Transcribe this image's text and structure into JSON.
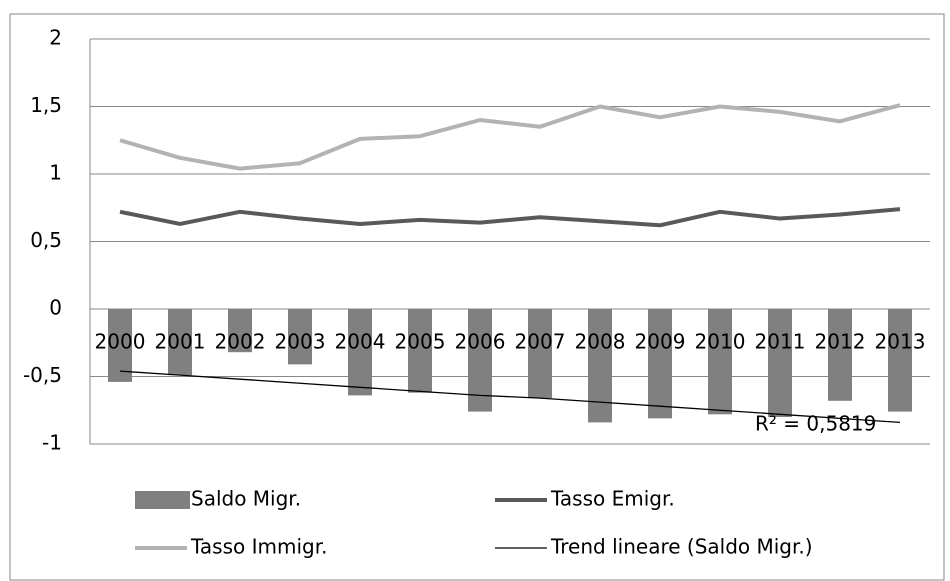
{
  "chart_data": {
    "type": "bar-line",
    "categories": [
      "2000",
      "2001",
      "2002",
      "2003",
      "2004",
      "2005",
      "2006",
      "2007",
      "2008",
      "2009",
      "2010",
      "2011",
      "2012",
      "2013"
    ],
    "series": [
      {
        "name": "Saldo Migr.",
        "kind": "bar",
        "color": "#808080",
        "values": [
          -0.54,
          -0.49,
          -0.32,
          -0.41,
          -0.64,
          -0.62,
          -0.76,
          -0.66,
          -0.84,
          -0.81,
          -0.78,
          -0.8,
          -0.68,
          -0.76
        ]
      },
      {
        "name": "Tasso Emigr.",
        "kind": "line",
        "color": "#595959",
        "values": [
          0.72,
          0.63,
          0.72,
          0.67,
          0.63,
          0.66,
          0.64,
          0.68,
          0.65,
          0.62,
          0.72,
          0.67,
          0.7,
          0.74
        ]
      },
      {
        "name": "Tasso Immigr.",
        "kind": "line",
        "color": "#b3b3b3",
        "values": [
          1.25,
          1.12,
          1.04,
          1.08,
          1.26,
          1.28,
          1.4,
          1.35,
          1.5,
          1.42,
          1.5,
          1.46,
          1.39,
          1.51
        ]
      },
      {
        "name": "Trend lineare (Saldo Migr.)",
        "kind": "trend",
        "color": "#000000",
        "values": [
          -0.46,
          -0.49,
          -0.52,
          -0.55,
          -0.58,
          -0.61,
          -0.64,
          -0.66,
          -0.69,
          -0.72,
          -0.75,
          -0.78,
          -0.81,
          -0.84
        ]
      }
    ],
    "annotation": "R² = 0,5819",
    "ylim": [
      -1,
      2
    ],
    "yticks": [
      -1,
      {
        "value": -0.5,
        "label": "-0,5"
      },
      0,
      {
        "value": 0.5,
        "label": "0,5"
      },
      1,
      {
        "value": 1.5,
        "label": "1,5"
      },
      2
    ],
    "grid": true
  }
}
